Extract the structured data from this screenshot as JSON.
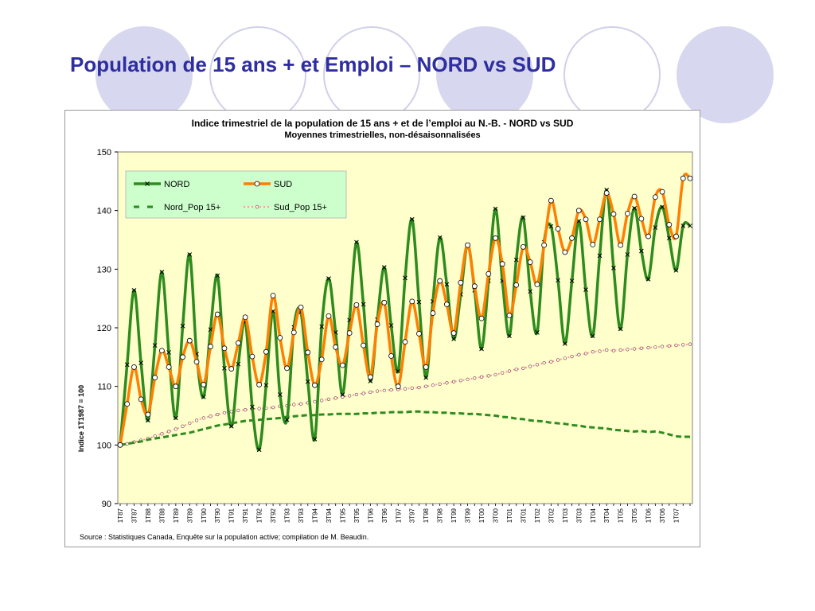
{
  "slide": {
    "title": "Population de 15 ans + et Emploi – NORD vs SUD",
    "colors": {
      "title": "#2e2ea0",
      "deco_fill": "#d7d7ef",
      "deco_ring": "#d0d0ea"
    }
  },
  "chart_data": {
    "type": "line",
    "title": "Indice trimestriel de la population de 15 ans + et de l’emploi au N.-B.  -  NORD vs SUD",
    "subtitle": "Moyennes trimestrielles, non-désaisonnalisées",
    "ylabel": "Indice 1T1987 = 100",
    "xlabel": "",
    "ylim": [
      90,
      150
    ],
    "yticks": [
      90,
      100,
      110,
      120,
      130,
      140,
      150
    ],
    "grid": false,
    "plot_background": "#ffffcc",
    "legend_position": "top-left",
    "legend_background": "#ccffcc",
    "source": "Source : Statistiques Canada, Enquête sur la population active; compilation de M. Beaudin.",
    "categories": [
      "1T87",
      "2T87",
      "3T87",
      "4T87",
      "1T88",
      "2T88",
      "3T88",
      "4T88",
      "1T89",
      "2T89",
      "3T89",
      "4T89",
      "1T90",
      "2T90",
      "3T90",
      "4T90",
      "1T91",
      "2T91",
      "3T91",
      "4T91",
      "1T92",
      "2T92",
      "3T92",
      "4T92",
      "1T93",
      "2T93",
      "3T93",
      "4T93",
      "1T94",
      "2T94",
      "3T94",
      "4T94",
      "1T95",
      "2T95",
      "3T95",
      "4T95",
      "1T96",
      "2T96",
      "3T96",
      "4T96",
      "1T97",
      "2T97",
      "3T97",
      "4T97",
      "1T98",
      "2T98",
      "3T98",
      "4T98",
      "1T99",
      "2T99",
      "3T99",
      "4T99",
      "1T00",
      "2T00",
      "3T00",
      "4T00",
      "1T01",
      "2T01",
      "3T01",
      "4T01",
      "1T02",
      "2T02",
      "3T02",
      "4T02",
      "1T03",
      "2T03",
      "3T03",
      "4T03",
      "1T04",
      "2T04",
      "3T04",
      "4T04",
      "1T05",
      "2T05",
      "3T05",
      "4T05",
      "1T06",
      "2T06",
      "3T06",
      "4T06",
      "1T07",
      "2T07",
      "3T07"
    ],
    "x_tick_labels": [
      "1T87",
      "3T87",
      "1T88",
      "3T88",
      "1T89",
      "3T89",
      "1T90",
      "3T90",
      "1T91",
      "3T91",
      "1T92",
      "3T92",
      "1T93",
      "3T93",
      "1T94",
      "3T94",
      "1T95",
      "3T95",
      "1T96",
      "3T96",
      "1T97",
      "3T97",
      "1T98",
      "3T98",
      "1T99",
      "3T99",
      "1T00",
      "3T00",
      "1T01",
      "3T01",
      "1T02",
      "3T02",
      "1T03",
      "3T03",
      "1T04",
      "3T04",
      "1T05",
      "3T05",
      "1T06",
      "3T06",
      "1T07"
    ],
    "series": [
      {
        "name": "NORD",
        "color": "#2e8b1e",
        "style": "solid",
        "marker": "x",
        "values": [
          100,
          113.7,
          126.4,
          114,
          104.2,
          117,
          129.5,
          115.8,
          104.6,
          120.3,
          132.5,
          115.5,
          108.2,
          119.7,
          128.9,
          113.1,
          103.2,
          113.8,
          121,
          106.5,
          99.2,
          110.2,
          122.8,
          108.6,
          104.3,
          120.1,
          122.7,
          110.8,
          101,
          120.2,
          128.4,
          119.2,
          108.6,
          121.3,
          134.6,
          124,
          110.9,
          121.4,
          130.3,
          120.4,
          112.6,
          128.5,
          138.5,
          124.4,
          111.5,
          124.5,
          135.4,
          127.4,
          118.1,
          125.7,
          134.1,
          126.4,
          116.4,
          128,
          140.3,
          128,
          118.6,
          131.6,
          138.8,
          126.2,
          119.2,
          134.6,
          137.3,
          128.1,
          117.3,
          128,
          138.2,
          126.5,
          118.6,
          132.3,
          143.5,
          130.2,
          119.8,
          132.5,
          140.4,
          133.1,
          128.3,
          137.1,
          140.6,
          135.3,
          129.8,
          137.4,
          137.4
        ]
      },
      {
        "name": "SUD",
        "color": "#ff7f00",
        "style": "solid",
        "marker": "circle",
        "values": [
          100,
          107,
          113.3,
          107.8,
          105.2,
          111.5,
          116.1,
          113.3,
          110,
          115,
          117.8,
          114.2,
          110.3,
          116.8,
          122.3,
          116.5,
          113,
          117.4,
          121.8,
          115.1,
          110.3,
          115.9,
          125.5,
          118.3,
          113.1,
          119.2,
          123.5,
          115.8,
          110.2,
          114.6,
          122,
          116.7,
          113.6,
          119.1,
          123.9,
          117,
          111.6,
          120.6,
          124.3,
          115.2,
          110,
          117.6,
          124.5,
          119,
          113.3,
          122.5,
          128,
          124,
          119.1,
          127.7,
          134.1,
          127.1,
          121.6,
          129.2,
          135.3,
          130.9,
          122.1,
          127.3,
          133.8,
          131.2,
          127.4,
          134.1,
          141.7,
          136.9,
          132.9,
          135.3,
          140,
          138.5,
          134.2,
          138.5,
          143,
          139.4,
          134.1,
          139.5,
          142.4,
          138.6,
          135.6,
          142.3,
          143.2,
          137.6,
          135.6,
          145.5,
          145.5
        ]
      },
      {
        "name": "Nord_Pop 15+",
        "color": "#2e8b1e",
        "style": "dashed",
        "marker": "none",
        "values": [
          100,
          100.2,
          100.4,
          100.6,
          100.9,
          101.1,
          101.3,
          101.5,
          101.7,
          101.9,
          102.1,
          102.4,
          102.7,
          103,
          103.3,
          103.5,
          103.7,
          103.9,
          104.1,
          104.2,
          104.3,
          104.4,
          104.5,
          104.6,
          104.8,
          104.9,
          105,
          105.1,
          105.1,
          105.2,
          105.2,
          105.3,
          105.3,
          105.3,
          105.3,
          105.4,
          105.4,
          105.5,
          105.5,
          105.6,
          105.6,
          105.6,
          105.7,
          105.7,
          105.6,
          105.6,
          105.5,
          105.5,
          105.4,
          105.4,
          105.3,
          105.3,
          105.2,
          105.1,
          105,
          104.8,
          104.7,
          104.5,
          104.4,
          104.2,
          104.1,
          104,
          103.8,
          103.7,
          103.6,
          103.4,
          103.3,
          103.1,
          103,
          102.9,
          102.8,
          102.6,
          102.5,
          102.4,
          102.3,
          102.4,
          102.2,
          102.3,
          102.1,
          101.8,
          101.5,
          101.4,
          101.4
        ]
      },
      {
        "name": "Sud_Pop 15+",
        "color": "#ff9999",
        "style": "dotted",
        "marker": "small-circle",
        "values": [
          100,
          100.2,
          100.5,
          100.8,
          101.1,
          101.5,
          101.9,
          102.3,
          102.7,
          103.2,
          103.7,
          104.2,
          104.6,
          104.9,
          105.2,
          105.5,
          105.7,
          105.9,
          106,
          106.1,
          106.2,
          106.3,
          106.4,
          106.6,
          106.7,
          106.9,
          107,
          107.2,
          107.4,
          107.6,
          107.8,
          108,
          108.2,
          108.4,
          108.6,
          108.8,
          109,
          109.2,
          109.3,
          109.4,
          109.5,
          109.6,
          109.7,
          109.8,
          110,
          110.2,
          110.4,
          110.6,
          110.8,
          111,
          111.2,
          111.4,
          111.6,
          111.8,
          112,
          112.3,
          112.6,
          112.9,
          113.1,
          113.4,
          113.7,
          114,
          114.2,
          114.5,
          114.8,
          115.1,
          115.4,
          115.6,
          115.9,
          116,
          116.2,
          116.1,
          116.2,
          116.3,
          116.4,
          116.5,
          116.6,
          116.7,
          116.8,
          116.9,
          117,
          117.1,
          117.2
        ]
      }
    ]
  }
}
